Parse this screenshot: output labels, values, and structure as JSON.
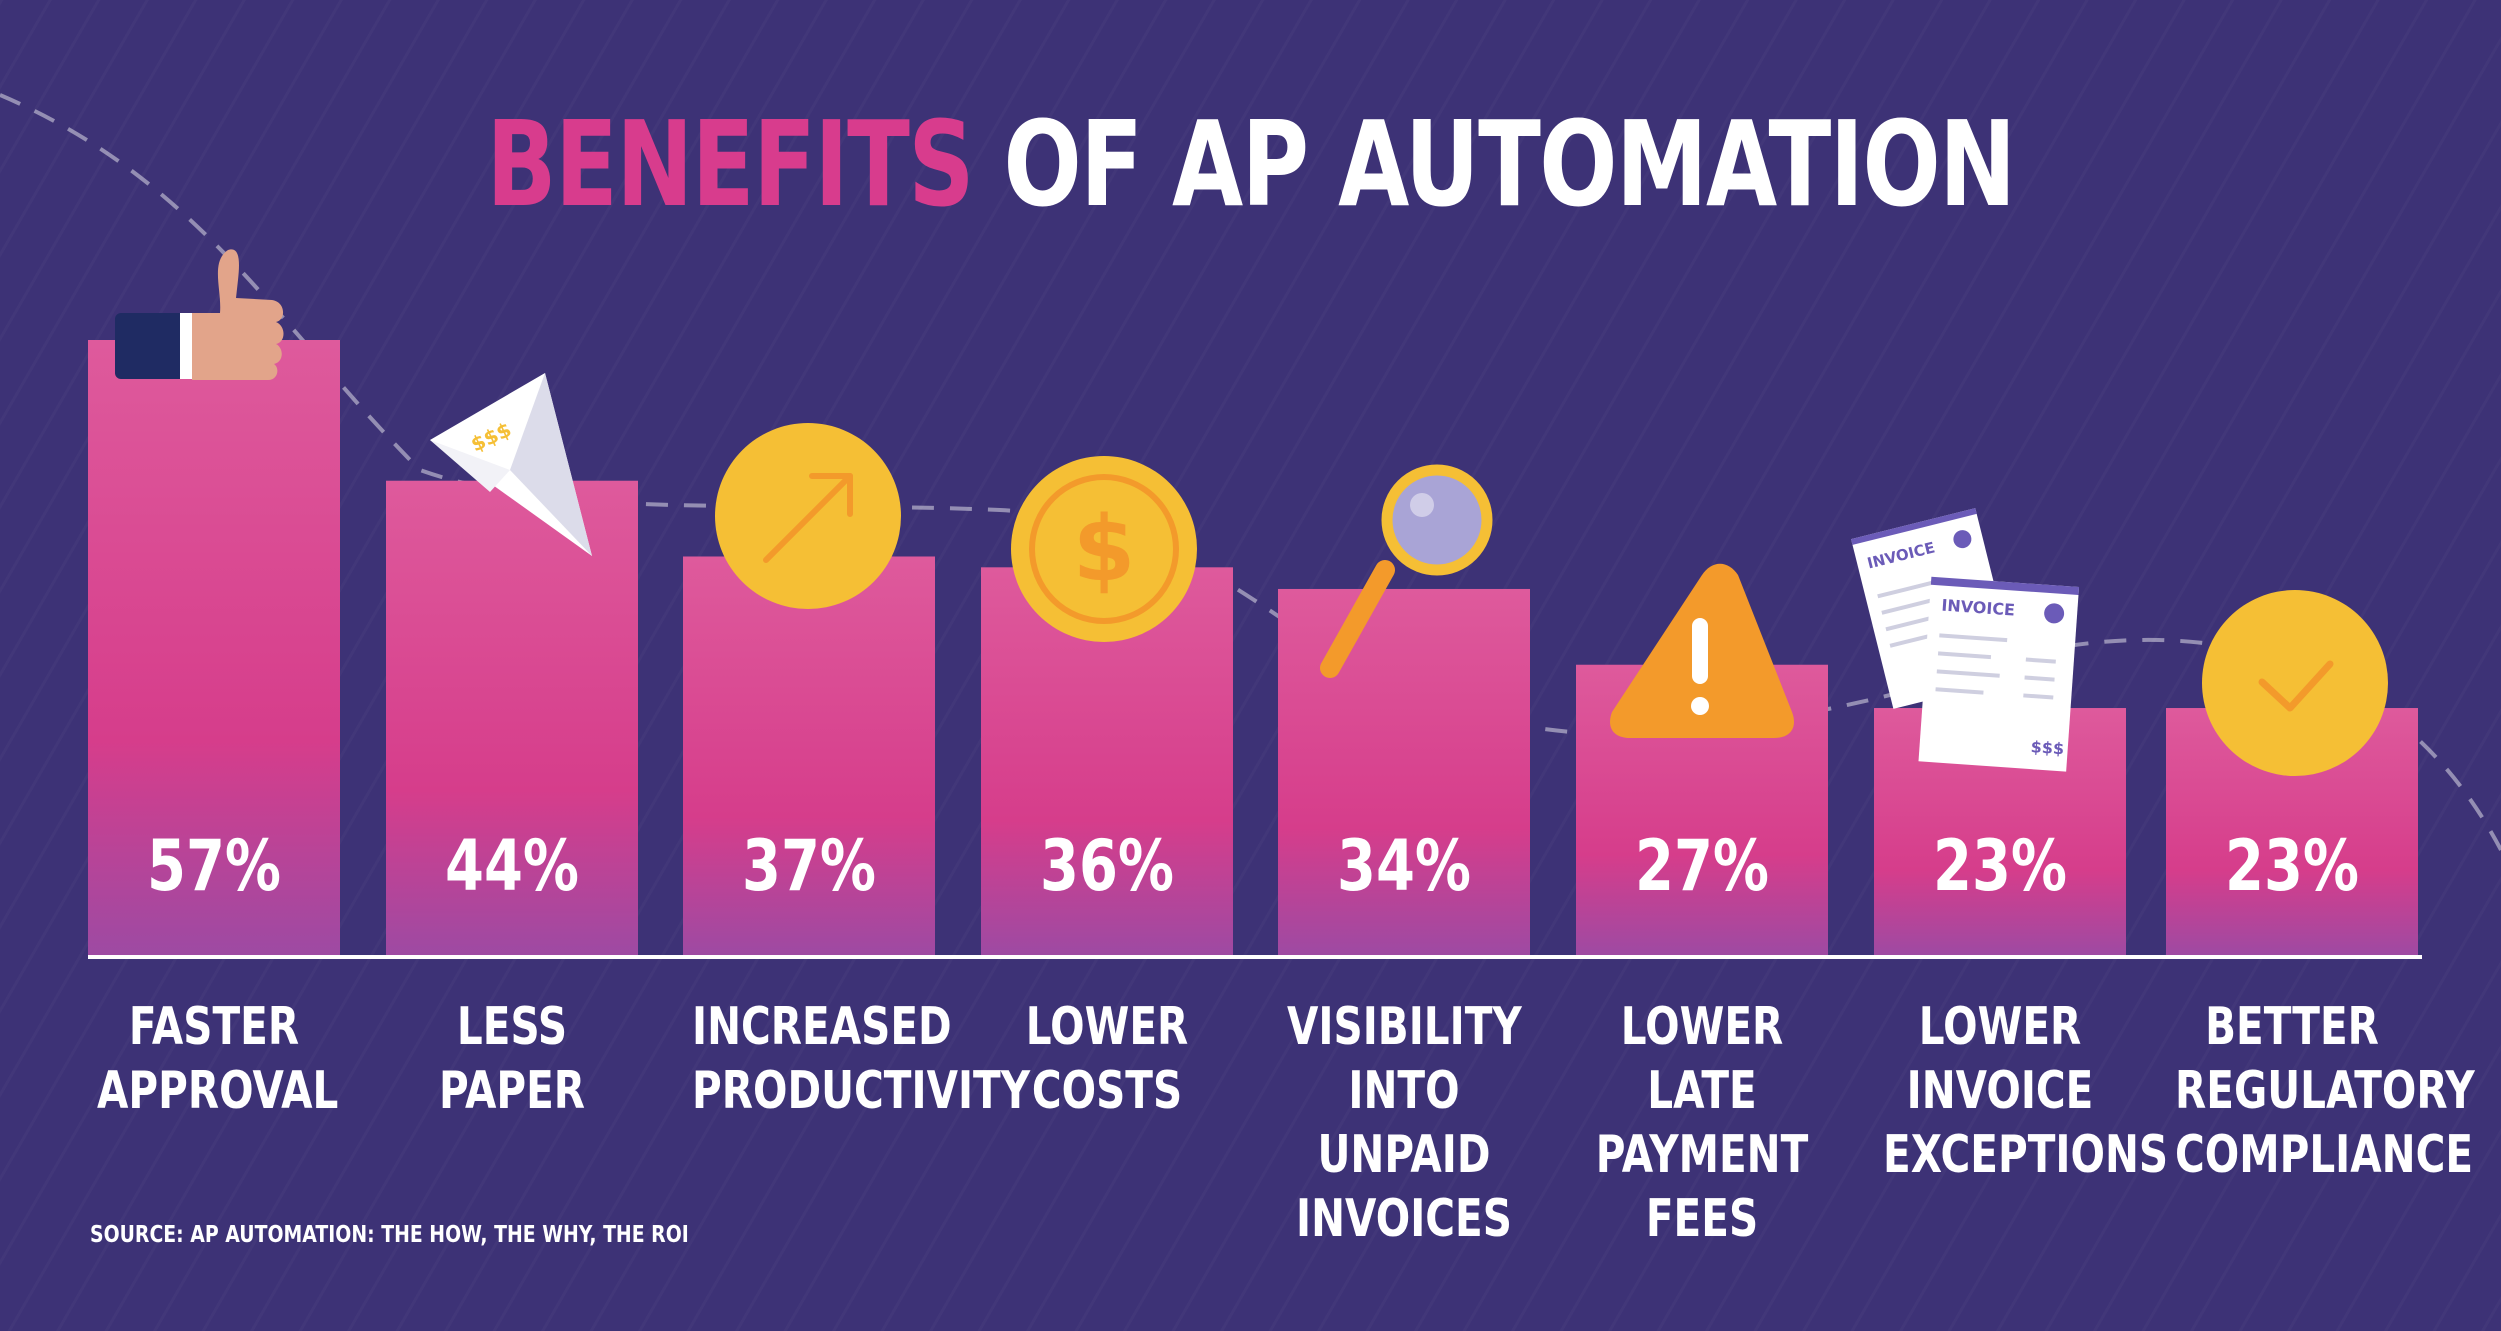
{
  "title": {
    "accent": "BENEFITS",
    "rest": "OF AP AUTOMATION"
  },
  "source": "SOURCE: AP AUTOMATION: THE HOW, THE WHY, THE ROI",
  "colors": {
    "background": "#3d3276",
    "bar_top": "#de5a9c",
    "bar_mid": "#d63d8b",
    "bar_bottom": "#9d4aa3",
    "title_accent": "#d83c8d",
    "icon_yellow": "#f5bf35",
    "icon_orange": "#f39a2b"
  },
  "chart_data": {
    "type": "bar",
    "title": "BENEFITS OF AP AUTOMATION",
    "categories": [
      "FASTER\nAPPROVAL",
      "LESS\nPAPER",
      "INCREASED\nPRODUCTIVITY",
      "LOWER\nCOSTS",
      "VISIBILITY\nINTO UNPAID\nINVOICES",
      "LOWER LATE\nPAYMENT\nFEES",
      "LOWER\nINVOICE\nEXCEPTIONS",
      "BETTER\nREGULATORY\nCOMPLIANCE"
    ],
    "values": [
      57,
      44,
      37,
      36,
      34,
      27,
      23,
      23
    ],
    "value_labels": [
      "57%",
      "44%",
      "37%",
      "36%",
      "34%",
      "27%",
      "23%",
      "23%"
    ],
    "ylim": [
      0,
      57
    ],
    "grid": false,
    "legend": "none",
    "icons": [
      "thumbs-up-icon",
      "paper-plane-icon",
      "arrow-up-right-icon",
      "dollar-coin-icon",
      "magnifier-icon",
      "warning-icon",
      "invoice-icon",
      "checkmark-icon"
    ],
    "icon_texts": {
      "money": "$$$",
      "invoice": "INVOICE",
      "invoice_total": "$$$",
      "dollar": "$"
    }
  }
}
